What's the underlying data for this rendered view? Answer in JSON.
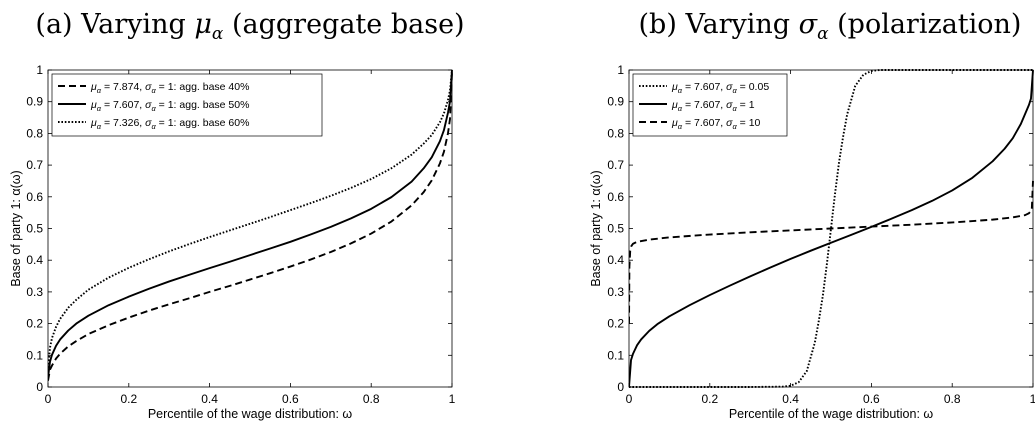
{
  "chart_data": [
    {
      "type": "line",
      "title": "(a) Varying μα (aggregate base)",
      "title_parts": {
        "prefix": "(a) Varying ",
        "symbol": "μ",
        "symbol_sub": "α",
        "suffix": " (aggregate base)"
      },
      "xlabel": "Percentile of the wage distribution: ω",
      "ylabel": "Base of party 1: α(ω)",
      "xlim": [
        0,
        1
      ],
      "ylim": [
        0,
        1
      ],
      "xticks": [
        "0",
        "0.2",
        "0.4",
        "0.6",
        "0.8",
        "1"
      ],
      "yticks": [
        "0",
        "0.1",
        "0.2",
        "0.3",
        "0.4",
        "0.5",
        "0.6",
        "0.7",
        "0.8",
        "0.9",
        "1"
      ],
      "grid": false,
      "legend_position": "top-left",
      "series": [
        {
          "name": "μα = 7.874, σα = 1: agg. base 40%",
          "legend_parts": {
            "mu": "μ",
            "mu_sub": "α",
            "mid": " = 7.874, ",
            "sigma": "σ",
            "sigma_sub": "α",
            "tail": " = 1: agg. base 40%"
          },
          "style": "dashed",
          "x": [
            0,
            0.005,
            0.01,
            0.02,
            0.03,
            0.05,
            0.07,
            0.1,
            0.15,
            0.2,
            0.25,
            0.3,
            0.35,
            0.4,
            0.45,
            0.5,
            0.55,
            0.6,
            0.65,
            0.7,
            0.75,
            0.8,
            0.85,
            0.9,
            0.93,
            0.95,
            0.97,
            0.98,
            0.99,
            0.995,
            1
          ],
          "y": [
            0.02,
            0.055,
            0.068,
            0.09,
            0.105,
            0.128,
            0.145,
            0.167,
            0.195,
            0.219,
            0.241,
            0.261,
            0.28,
            0.3,
            0.319,
            0.339,
            0.359,
            0.38,
            0.402,
            0.426,
            0.453,
            0.484,
            0.522,
            0.573,
            0.615,
            0.652,
            0.705,
            0.742,
            0.8,
            0.845,
            0.99
          ]
        },
        {
          "name": "μα = 7.607, σα = 1: agg. base 50%",
          "legend_parts": {
            "mu": "μ",
            "mu_sub": "α",
            "mid": " = 7.607, ",
            "sigma": "σ",
            "sigma_sub": "α",
            "tail": " = 1: agg. base 50%"
          },
          "style": "solid",
          "x": [
            0,
            0.005,
            0.01,
            0.02,
            0.03,
            0.05,
            0.07,
            0.1,
            0.15,
            0.2,
            0.25,
            0.3,
            0.35,
            0.4,
            0.45,
            0.5,
            0.55,
            0.6,
            0.65,
            0.7,
            0.75,
            0.8,
            0.85,
            0.9,
            0.93,
            0.95,
            0.97,
            0.98,
            0.99,
            0.995,
            1
          ],
          "y": [
            0.03,
            0.08,
            0.102,
            0.13,
            0.15,
            0.178,
            0.2,
            0.225,
            0.258,
            0.285,
            0.31,
            0.333,
            0.354,
            0.375,
            0.395,
            0.416,
            0.437,
            0.458,
            0.481,
            0.505,
            0.532,
            0.562,
            0.599,
            0.648,
            0.69,
            0.725,
            0.775,
            0.81,
            0.865,
            0.9,
            1.0
          ]
        },
        {
          "name": "μα = 7.326, σα = 1: agg. base 60%",
          "legend_parts": {
            "mu": "μ",
            "mu_sub": "α",
            "mid": " = 7.326, ",
            "sigma": "σ",
            "sigma_sub": "α",
            "tail": " = 1: agg. base 60%"
          },
          "style": "dotted",
          "x": [
            0,
            0.005,
            0.01,
            0.02,
            0.03,
            0.05,
            0.07,
            0.1,
            0.15,
            0.2,
            0.25,
            0.3,
            0.35,
            0.4,
            0.45,
            0.5,
            0.55,
            0.6,
            0.65,
            0.7,
            0.75,
            0.8,
            0.85,
            0.9,
            0.93,
            0.95,
            0.97,
            0.98,
            0.99,
            0.995,
            1
          ],
          "y": [
            0.05,
            0.125,
            0.155,
            0.19,
            0.215,
            0.25,
            0.275,
            0.307,
            0.345,
            0.376,
            0.403,
            0.428,
            0.451,
            0.473,
            0.494,
            0.515,
            0.536,
            0.558,
            0.58,
            0.603,
            0.628,
            0.656,
            0.69,
            0.733,
            0.768,
            0.795,
            0.835,
            0.863,
            0.905,
            0.935,
            1.0
          ]
        }
      ]
    },
    {
      "type": "line",
      "title": "(b) Varying σα (polarization)",
      "title_parts": {
        "prefix": "(b) Varying ",
        "symbol": "σ",
        "symbol_sub": "α",
        "suffix": " (polarization)"
      },
      "xlabel": "Percentile of the wage distribution: ω",
      "ylabel": "Base of party 1: α(ω)",
      "xlim": [
        0,
        1
      ],
      "ylim": [
        0,
        1
      ],
      "xticks": [
        "0",
        "0.2",
        "0.4",
        "0.6",
        "0.8",
        "1"
      ],
      "yticks": [
        "0",
        "0.1",
        "0.2",
        "0.3",
        "0.4",
        "0.5",
        "0.6",
        "0.7",
        "0.8",
        "0.9",
        "1"
      ],
      "grid": false,
      "legend_position": "top-left",
      "series": [
        {
          "name": "μα = 7.607, σα = 0.05",
          "legend_parts": {
            "mu": "μ",
            "mu_sub": "α",
            "mid": " = 7.607, ",
            "sigma": "σ",
            "sigma_sub": "α",
            "tail": " = 0.05"
          },
          "style": "dotted",
          "x": [
            0,
            0.1,
            0.2,
            0.3,
            0.38,
            0.4,
            0.42,
            0.44,
            0.46,
            0.47,
            0.48,
            0.49,
            0.5,
            0.51,
            0.52,
            0.53,
            0.54,
            0.56,
            0.58,
            0.6,
            0.62,
            0.7,
            0.8,
            0.9,
            1
          ],
          "y": [
            0,
            0,
            0,
            0,
            0.001,
            0.004,
            0.015,
            0.05,
            0.14,
            0.21,
            0.29,
            0.39,
            0.5,
            0.61,
            0.71,
            0.79,
            0.86,
            0.95,
            0.985,
            0.997,
            1.0,
            1.0,
            1.0,
            1.0,
            1.0
          ]
        },
        {
          "name": "μα = 7.607, σα = 1",
          "legend_parts": {
            "mu": "μ",
            "mu_sub": "α",
            "mid": " = 7.607, ",
            "sigma": "σ",
            "sigma_sub": "α",
            "tail": " = 1"
          },
          "style": "solid",
          "x": [
            0,
            0.005,
            0.01,
            0.02,
            0.03,
            0.05,
            0.07,
            0.1,
            0.15,
            0.2,
            0.25,
            0.3,
            0.35,
            0.4,
            0.45,
            0.5,
            0.55,
            0.6,
            0.65,
            0.7,
            0.75,
            0.8,
            0.85,
            0.9,
            0.93,
            0.95,
            0.97,
            0.98,
            0.99,
            0.995,
            1
          ],
          "y": [
            0.0,
            0.085,
            0.105,
            0.132,
            0.15,
            0.177,
            0.198,
            0.223,
            0.258,
            0.29,
            0.32,
            0.349,
            0.377,
            0.404,
            0.43,
            0.455,
            0.48,
            0.505,
            0.531,
            0.558,
            0.587,
            0.62,
            0.66,
            0.712,
            0.752,
            0.785,
            0.83,
            0.86,
            0.89,
            0.91,
            1.0
          ]
        },
        {
          "name": "μα = 7.607, σα = 10",
          "legend_parts": {
            "mu": "μ",
            "mu_sub": "α",
            "mid": " = 7.607, ",
            "sigma": "σ",
            "sigma_sub": "α",
            "tail": " = 10"
          },
          "style": "dashed",
          "x": [
            0,
            0.001,
            0.003,
            0.006,
            0.01,
            0.02,
            0.05,
            0.1,
            0.2,
            0.3,
            0.4,
            0.5,
            0.6,
            0.7,
            0.8,
            0.9,
            0.95,
            0.98,
            0.99,
            0.997,
            1
          ],
          "y": [
            0.2,
            0.38,
            0.43,
            0.445,
            0.452,
            0.458,
            0.465,
            0.472,
            0.481,
            0.488,
            0.494,
            0.5,
            0.506,
            0.512,
            0.519,
            0.528,
            0.535,
            0.542,
            0.548,
            0.56,
            0.65
          ]
        }
      ]
    }
  ]
}
